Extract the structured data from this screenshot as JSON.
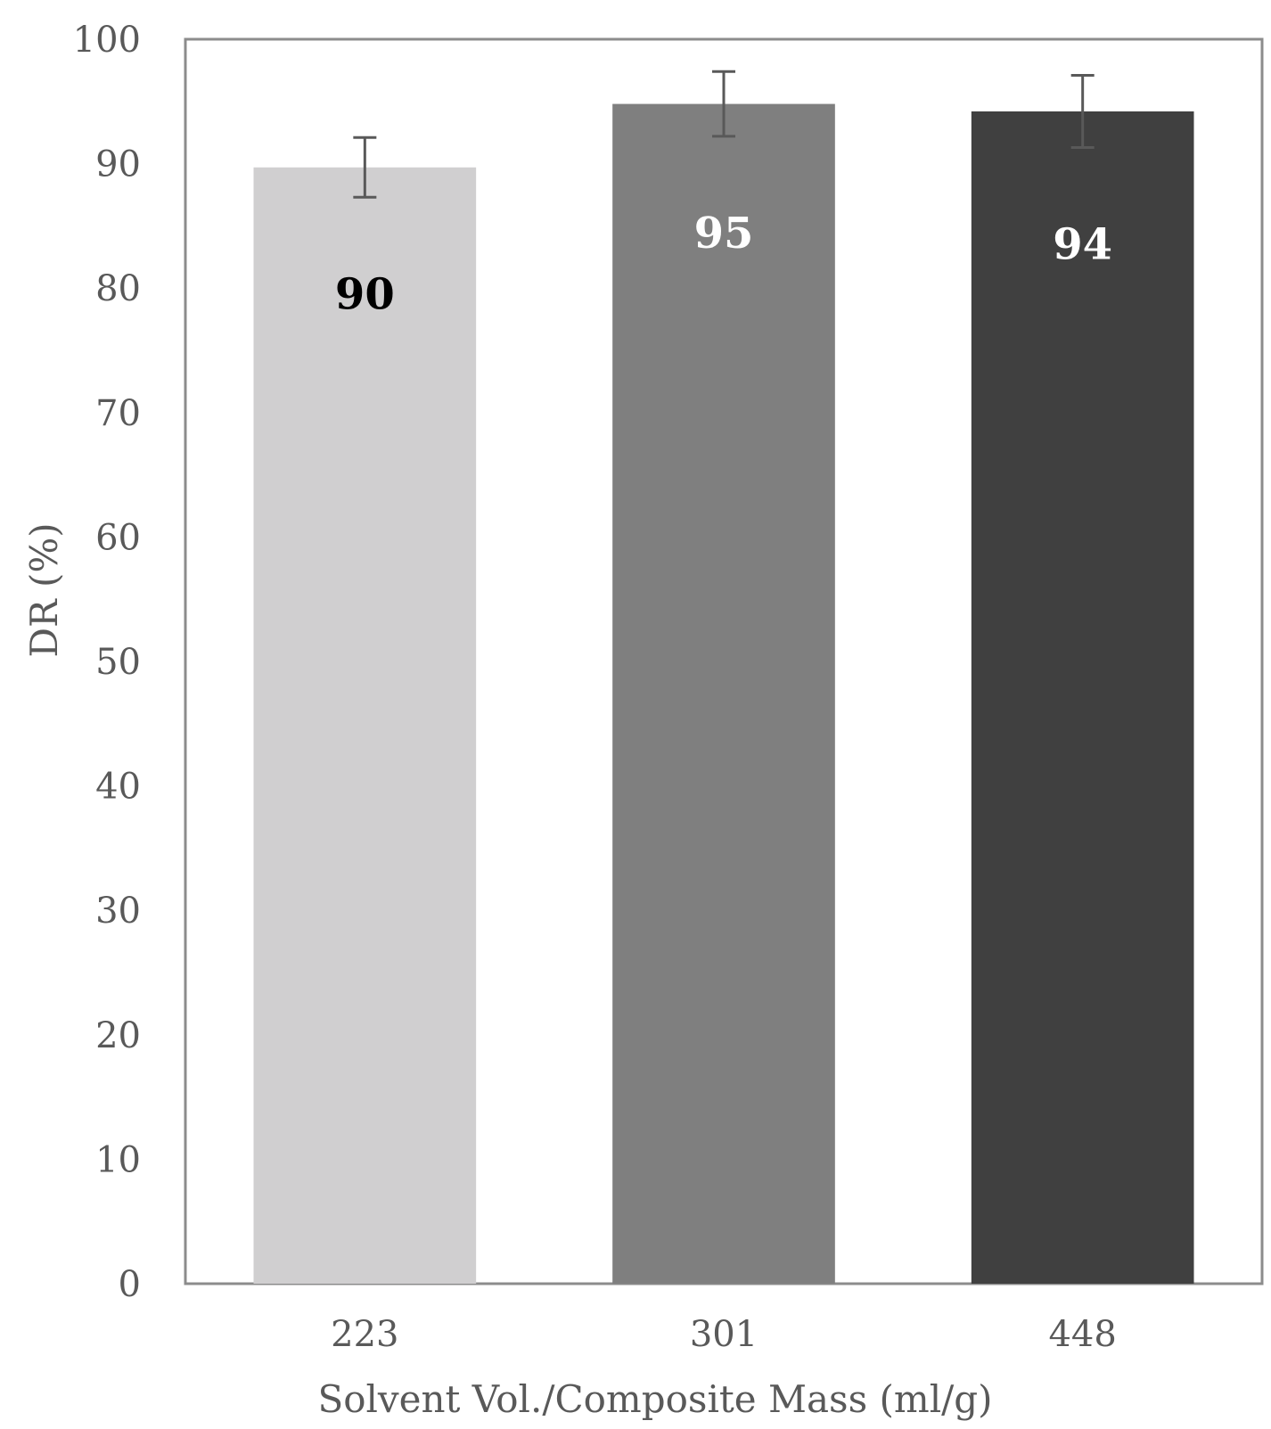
{
  "chart_data": {
    "type": "bar",
    "title": "",
    "xlabel": "Solvent Vol./Composite Mass (ml/g)",
    "ylabel": "DR (%)",
    "categories": [
      "223",
      "301",
      "448"
    ],
    "values": [
      89.7,
      94.8,
      94.2
    ],
    "data_labels": [
      "90",
      "95",
      "94"
    ],
    "error": [
      2.4,
      2.6,
      2.9
    ],
    "bar_colors": [
      "#d0cfd0",
      "#7f7f7f",
      "#404040"
    ],
    "label_colors": [
      "#000000",
      "#ffffff",
      "#ffffff"
    ],
    "ylim": [
      0,
      100
    ],
    "yticks": [
      0,
      10,
      20,
      30,
      40,
      50,
      60,
      70,
      80,
      90,
      100
    ],
    "grid": false,
    "legend": "none"
  }
}
